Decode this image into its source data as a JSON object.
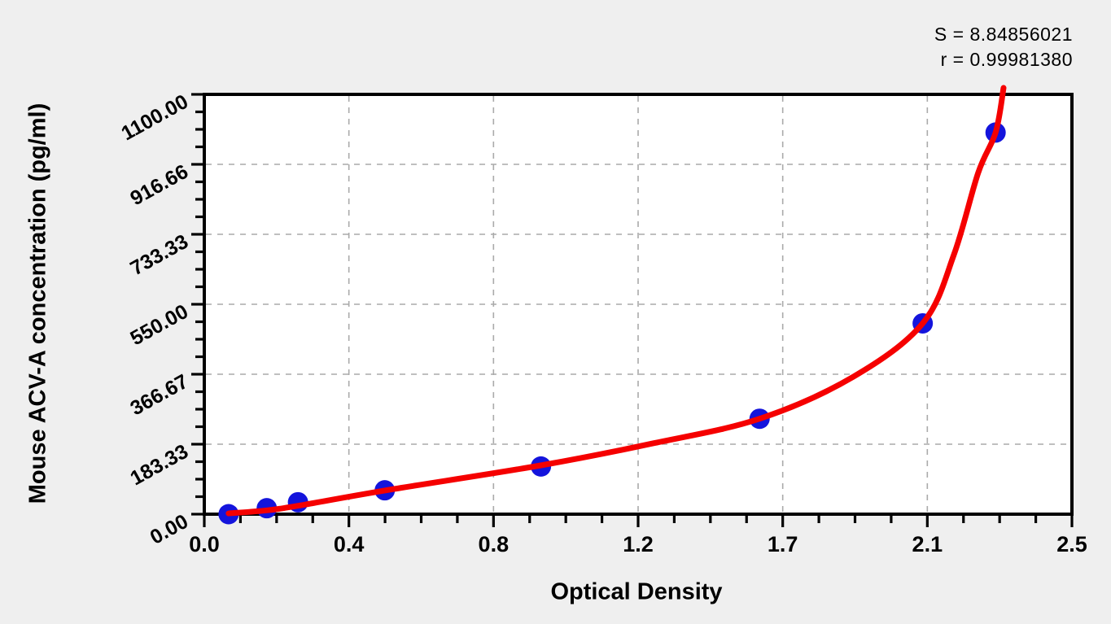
{
  "chart_data": {
    "type": "scatter",
    "title": "",
    "xlabel": "Optical Density",
    "ylabel": "Mouse ACV-A concentration (pg/ml)",
    "annotations": {
      "s_line": "S = 8.84856021",
      "r_line": "r = 0.99981380"
    },
    "x_axis": {
      "min": 0.0,
      "max": 2.5,
      "tick_labels": [
        "0.0",
        "0.4",
        "0.8",
        "1.2",
        "1.7",
        "2.1",
        "2.5"
      ],
      "minors_per_division": 3
    },
    "y_axis": {
      "min": 0.0,
      "max": 1100.0,
      "tick_labels": [
        "0.00",
        "183.33",
        "366.67",
        "550.00",
        "733.33",
        "916.66",
        "1100.00"
      ],
      "minors_per_division": 3
    },
    "grid": "dashed gridlines at interior major ticks, both axes",
    "legend_position": "none",
    "series": [
      {
        "name": "standard-points",
        "kind": "scatter",
        "marker": "circle",
        "points": [
          {
            "od": 0.07,
            "conc": 0
          },
          {
            "od": 0.18,
            "conc": 15.6
          },
          {
            "od": 0.27,
            "conc": 31.3
          },
          {
            "od": 0.52,
            "conc": 62.5
          },
          {
            "od": 0.97,
            "conc": 125
          },
          {
            "od": 1.6,
            "conc": 250
          },
          {
            "od": 2.07,
            "conc": 500
          },
          {
            "od": 2.28,
            "conc": 1000
          }
        ]
      },
      {
        "name": "fitted-curve",
        "kind": "line",
        "anchors": [
          [
            0.07,
            2
          ],
          [
            0.18,
            10
          ],
          [
            0.27,
            22
          ],
          [
            0.52,
            62
          ],
          [
            0.97,
            128
          ],
          [
            1.29,
            185
          ],
          [
            1.6,
            250
          ],
          [
            1.87,
            360
          ],
          [
            2.07,
            500
          ],
          [
            2.16,
            680
          ],
          [
            2.23,
            895
          ],
          [
            2.28,
            1000
          ],
          [
            2.303,
            1117
          ]
        ]
      }
    ],
    "colors": {
      "curve": "#f50000",
      "points": "#1414dc",
      "grid": "#aaaaaa",
      "frame": "#000000",
      "plot_bg": "#ffffff",
      "page_bg": "#efefef",
      "text": "#000000"
    }
  }
}
